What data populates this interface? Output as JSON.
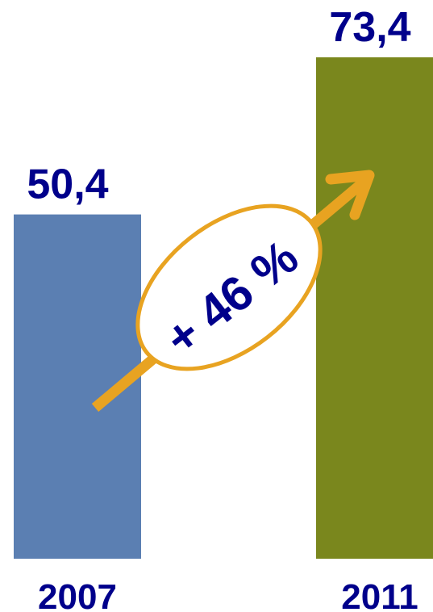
{
  "chart_data": {
    "type": "bar",
    "categories": [
      "2007",
      "2011"
    ],
    "values": [
      50.4,
      73.4
    ],
    "value_labels": [
      "50,4",
      "73,4"
    ],
    "bar_colors": [
      "#5B7FB2",
      "#7A871D"
    ],
    "ylim": [
      0,
      73.4
    ],
    "annotation": {
      "text": "+ 46 %",
      "color": "#E8A321"
    },
    "label_color": "#00008B",
    "grid": false,
    "legend": false
  }
}
